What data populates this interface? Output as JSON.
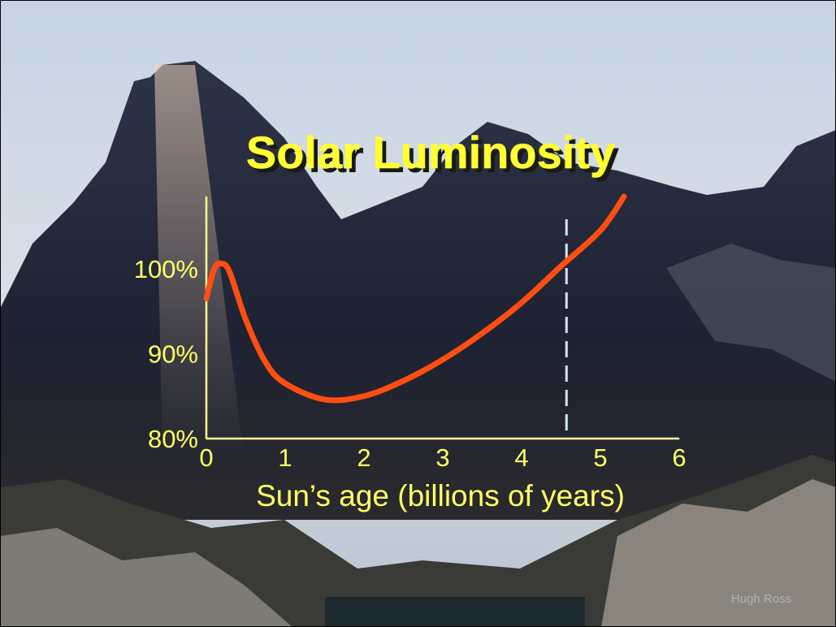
{
  "chart_data": {
    "type": "line",
    "title": "Solar Luminosity",
    "x_label": "Sun’s age (billions of years)",
    "x": [
      0,
      0.1,
      0.2,
      0.3,
      0.5,
      0.75,
      1,
      1.5,
      2,
      2.5,
      3,
      3.5,
      4,
      4.5,
      5,
      5.3
    ],
    "series": [
      {
        "color": "#ff4e12",
        "values": [
          96.5,
          100,
          100.6,
          99.5,
          94,
          89,
          86.5,
          84.6,
          85,
          86.8,
          89.3,
          92.4,
          96,
          100.3,
          104.5,
          108.5
        ]
      }
    ],
    "xlim": [
      0,
      6
    ],
    "xticks": [
      0,
      1,
      2,
      3,
      4,
      5,
      6
    ],
    "ylim": [
      80,
      108.5
    ],
    "yticks": [
      {
        "value": 80,
        "label": "80%"
      },
      {
        "value": 90,
        "label": "90%"
      },
      {
        "value": 100,
        "label": "100%"
      }
    ],
    "reference_line": {
      "x": 4.57,
      "color": "#cfe6f2"
    },
    "credit": "Hugh Ross"
  }
}
